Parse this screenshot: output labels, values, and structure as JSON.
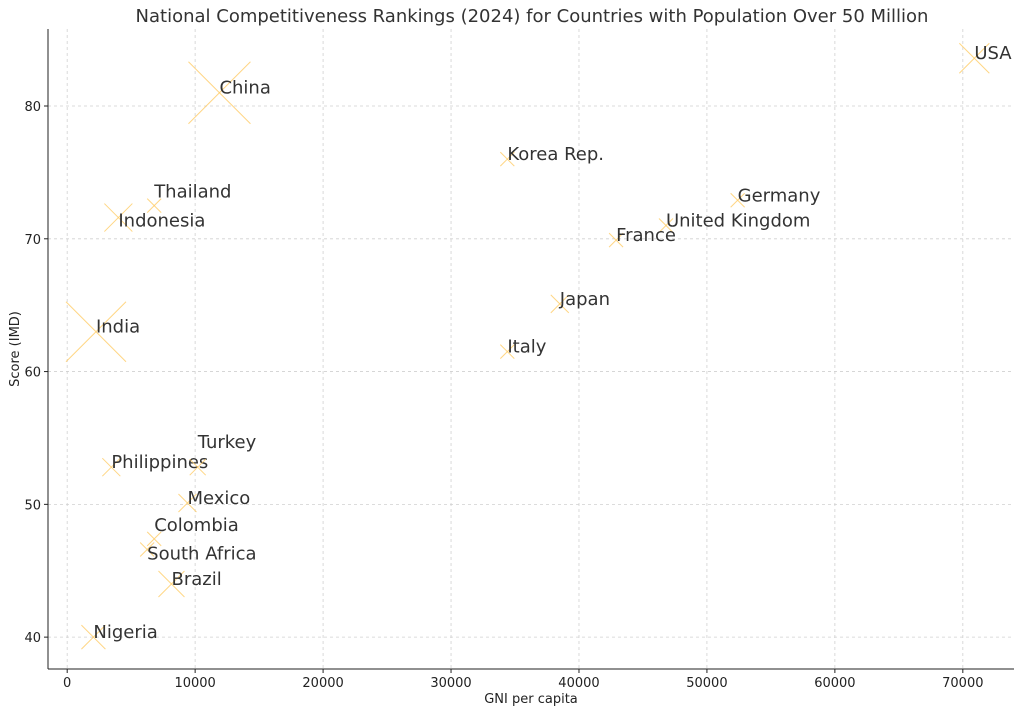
{
  "chart_data": {
    "type": "scatter",
    "title": "National Competitiveness Rankings (2024) for Countries with Population Over 50 Million",
    "xlabel": "GNI per capita",
    "ylabel": "Score (IMD)",
    "xlim": [
      -1500,
      74000
    ],
    "ylim": [
      37.6,
      85.8
    ],
    "xticks": [
      0,
      10000,
      20000,
      30000,
      40000,
      50000,
      60000,
      70000
    ],
    "yticks": [
      40,
      50,
      60,
      70,
      80
    ],
    "grid": true,
    "marker": "x",
    "marker_color": "#ffcc66",
    "points": [
      {
        "label": "USA",
        "x": 70900,
        "y": 83.6
      },
      {
        "label": "China",
        "x": 11900,
        "y": 81.0
      },
      {
        "label": "Korea Rep.",
        "x": 34400,
        "y": 76.0
      },
      {
        "label": "Germany",
        "x": 52400,
        "y": 72.9
      },
      {
        "label": "United Kingdom",
        "x": 46800,
        "y": 71.0
      },
      {
        "label": "France",
        "x": 42900,
        "y": 69.9
      },
      {
        "label": "Japan",
        "x": 38500,
        "y": 65.1
      },
      {
        "label": "Italy",
        "x": 34400,
        "y": 61.5
      },
      {
        "label": "India",
        "x": 2250,
        "y": 63.0
      },
      {
        "label": "Thailand",
        "x": 6800,
        "y": 72.5
      },
      {
        "label": "Indonesia",
        "x": 4000,
        "y": 71.6
      },
      {
        "label": "Philippines",
        "x": 3450,
        "y": 52.8
      },
      {
        "label": "Turkey",
        "x": 10200,
        "y": 52.8
      },
      {
        "label": "Mexico",
        "x": 9400,
        "y": 50.1
      },
      {
        "label": "Colombia",
        "x": 6800,
        "y": 47.4
      },
      {
        "label": "South Africa",
        "x": 6250,
        "y": 46.6
      },
      {
        "label": "Brazil",
        "x": 8150,
        "y": 44.0
      },
      {
        "label": "Nigeria",
        "x": 2050,
        "y": 40.0
      }
    ]
  }
}
